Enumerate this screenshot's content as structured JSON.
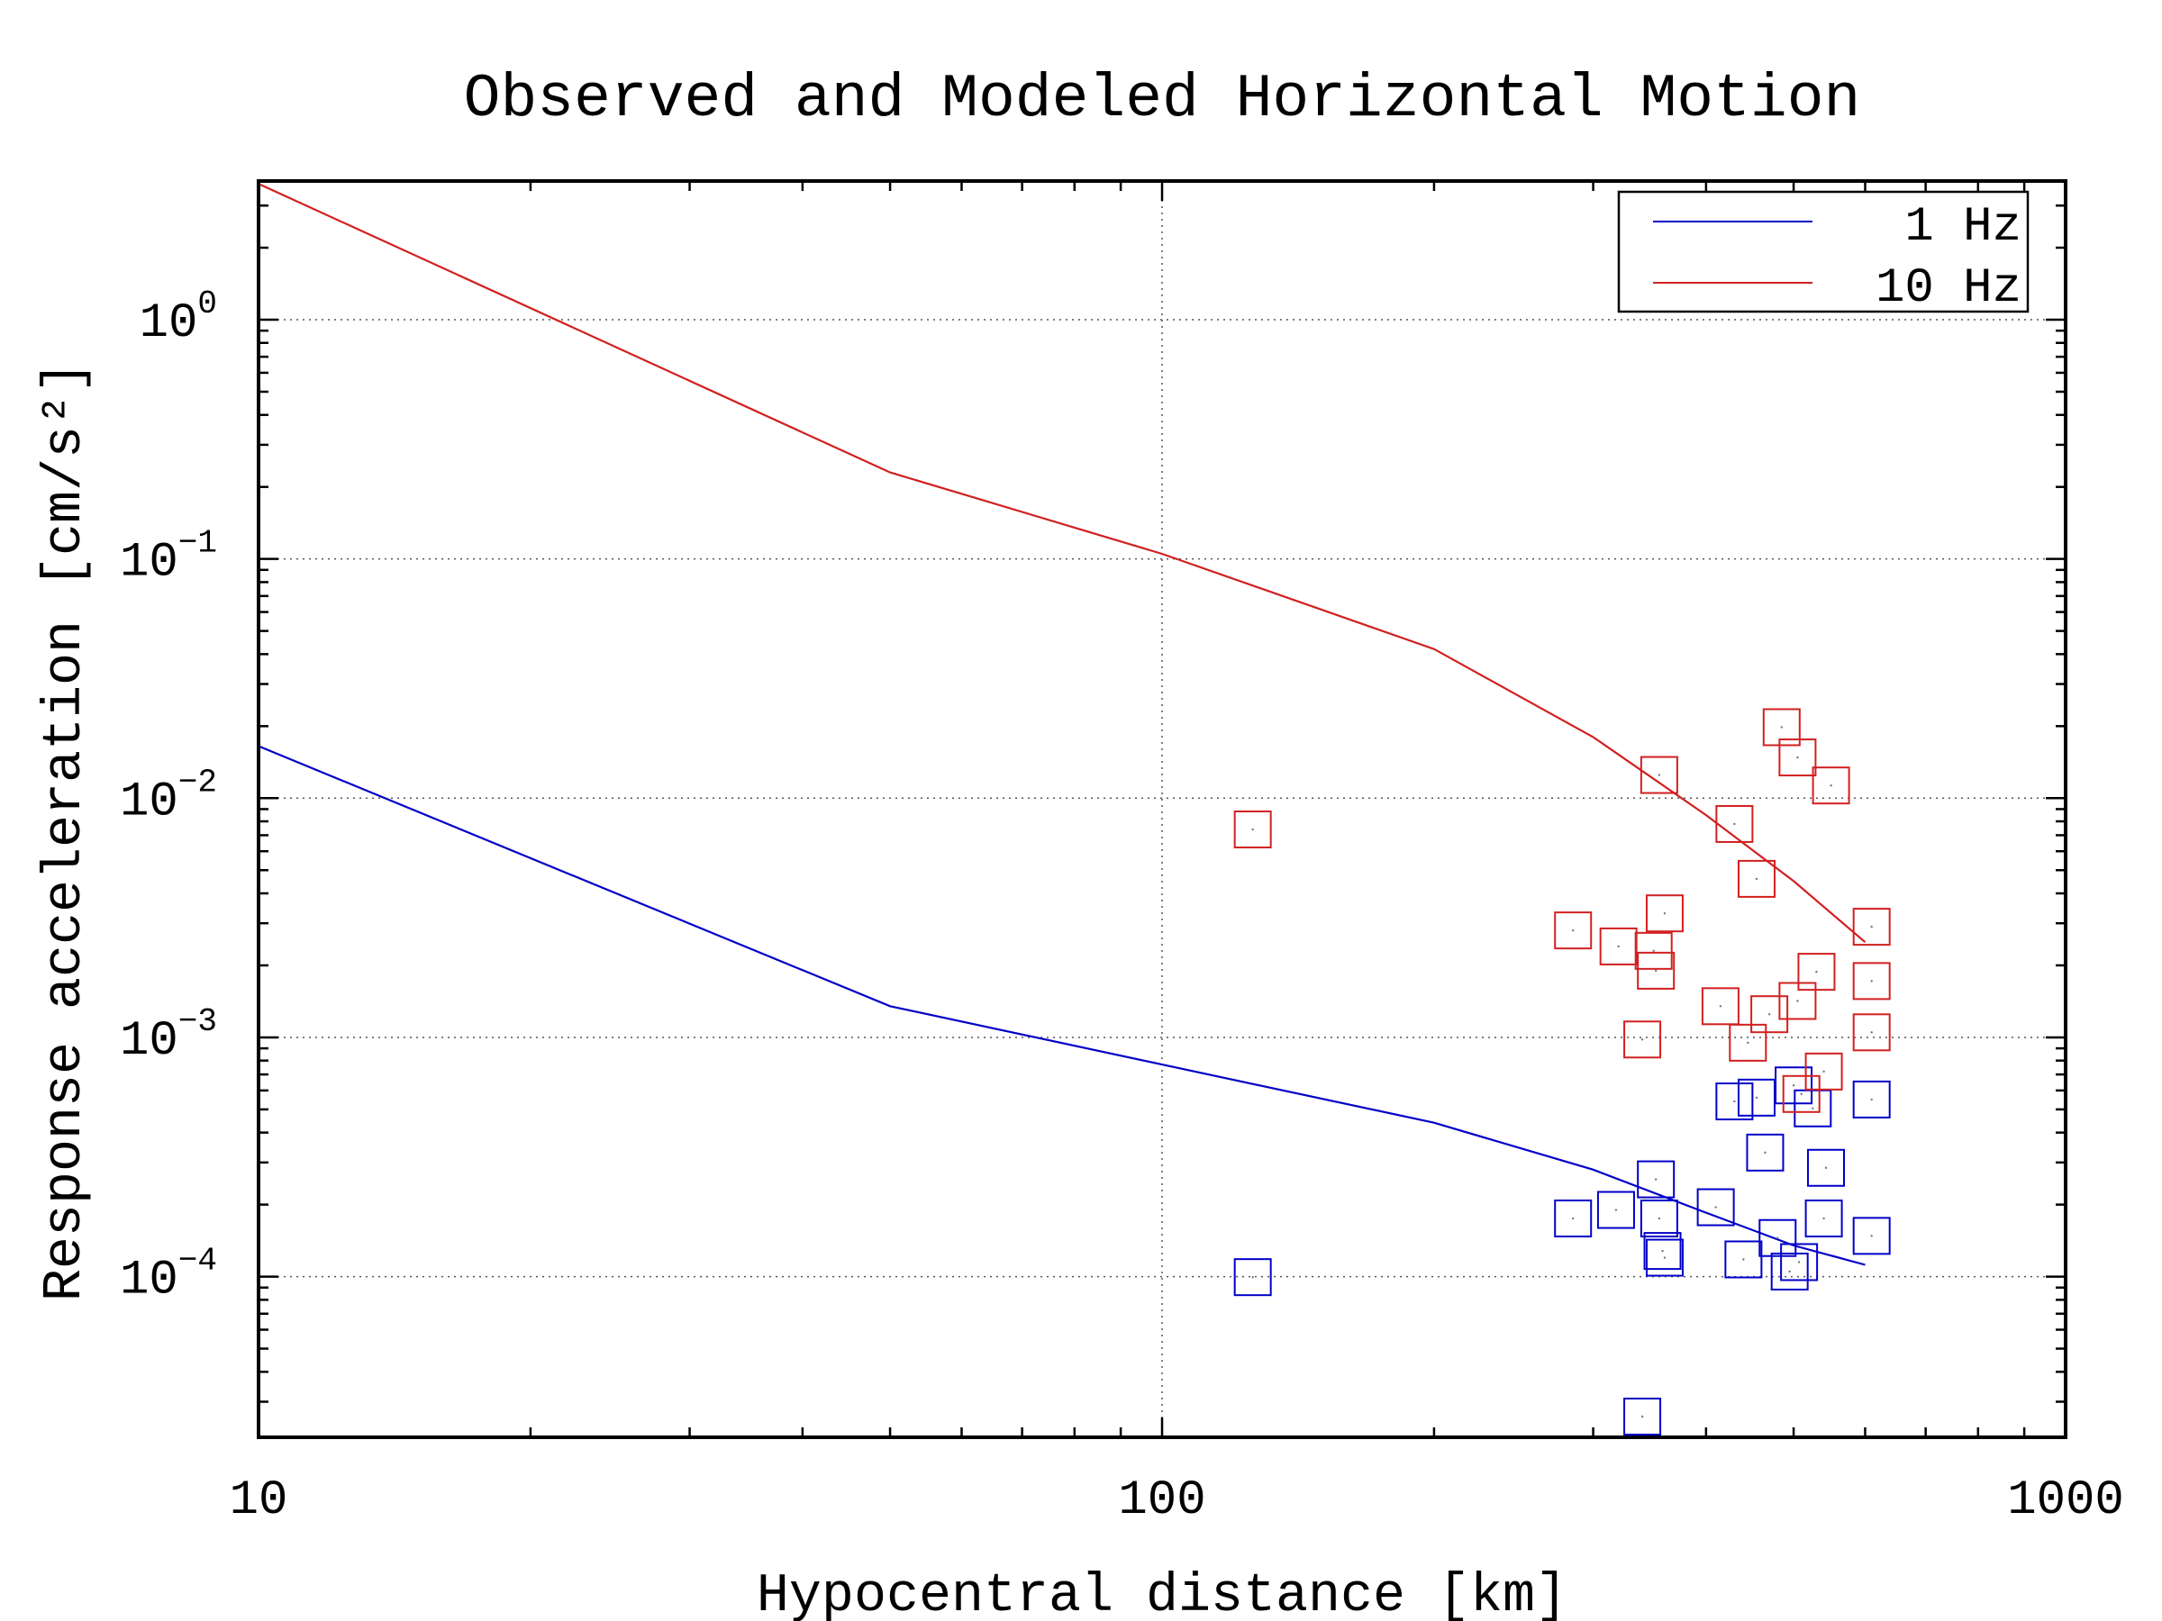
{
  "chart_data": {
    "type": "scatter",
    "title": "Observed and Modeled Horizontal Motion",
    "xlabel": "Hypocentral distance [km]",
    "ylabel": "Response acceleration [cm/s²]",
    "xscale": "log",
    "yscale": "log",
    "xlim": [
      10,
      1000
    ],
    "ylim": [
      2.13e-05,
      3.8
    ],
    "grid": true,
    "legend_position": "top-right",
    "x_ticks": [
      {
        "value": 10,
        "label": "10"
      },
      {
        "value": 100,
        "label": "100"
      },
      {
        "value": 1000,
        "label": "1000"
      }
    ],
    "y_ticks": [
      {
        "value": 1,
        "base": "10",
        "exp": "0"
      },
      {
        "value": 0.1,
        "base": "10",
        "exp": "−1"
      },
      {
        "value": 0.01,
        "base": "10",
        "exp": "−2"
      },
      {
        "value": 0.001,
        "base": "10",
        "exp": "−3"
      },
      {
        "value": 0.0001,
        "base": "10",
        "exp": "−4"
      }
    ],
    "series": [
      {
        "name": "1 Hz",
        "color": "#0000c8",
        "line": [
          [
            10,
            0.0165
          ],
          [
            50,
            0.00135
          ],
          [
            100,
            0.00077
          ],
          [
            200,
            0.00044
          ],
          [
            300,
            0.00028
          ],
          [
            400,
            0.000185
          ],
          [
            500,
            0.000135
          ],
          [
            600,
            0.000112
          ]
        ],
        "points": [
          [
            126,
            9.95e-05
          ],
          [
            285,
            0.000175
          ],
          [
            318,
            0.00019
          ],
          [
            340,
            2.6e-05
          ],
          [
            352,
            0.000255
          ],
          [
            355,
            0.000175
          ],
          [
            358,
            0.000128
          ],
          [
            360,
            0.00012
          ],
          [
            410,
            0.000195
          ],
          [
            430,
            0.00054
          ],
          [
            440,
            0.000118
          ],
          [
            455,
            0.00056
          ],
          [
            465,
            0.00033
          ],
          [
            480,
            0.000145
          ],
          [
            495,
            0.000105
          ],
          [
            500,
            0.00063
          ],
          [
            507,
            0.000115
          ],
          [
            525,
            0.000505
          ],
          [
            540,
            0.000175
          ],
          [
            543,
            0.000285
          ],
          [
            610,
            0.00055
          ],
          [
            610,
            0.000148
          ]
        ]
      },
      {
        "name": "10 Hz",
        "color": "#d22020",
        "line": [
          [
            10,
            3.7
          ],
          [
            50,
            0.23
          ],
          [
            100,
            0.105
          ],
          [
            200,
            0.042
          ],
          [
            300,
            0.018
          ],
          [
            400,
            0.0085
          ],
          [
            500,
            0.0045
          ],
          [
            600,
            0.0025
          ]
        ],
        "points": [
          [
            126,
            0.0074
          ],
          [
            285,
            0.0028
          ],
          [
            320,
            0.0024
          ],
          [
            340,
            0.00098
          ],
          [
            350,
            0.0023
          ],
          [
            352,
            0.0019
          ],
          [
            355,
            0.0125
          ],
          [
            360,
            0.0033
          ],
          [
            415,
            0.00135
          ],
          [
            430,
            0.0078
          ],
          [
            445,
            0.00095
          ],
          [
            455,
            0.0046
          ],
          [
            470,
            0.00125
          ],
          [
            485,
            0.0198
          ],
          [
            505,
            0.0148
          ],
          [
            505,
            0.00142
          ],
          [
            510,
            0.00058
          ],
          [
            530,
            0.00188
          ],
          [
            540,
            0.00072
          ],
          [
            550,
            0.0113
          ],
          [
            610,
            0.0029
          ],
          [
            610,
            0.00172
          ],
          [
            610,
            0.00105
          ]
        ]
      }
    ]
  }
}
